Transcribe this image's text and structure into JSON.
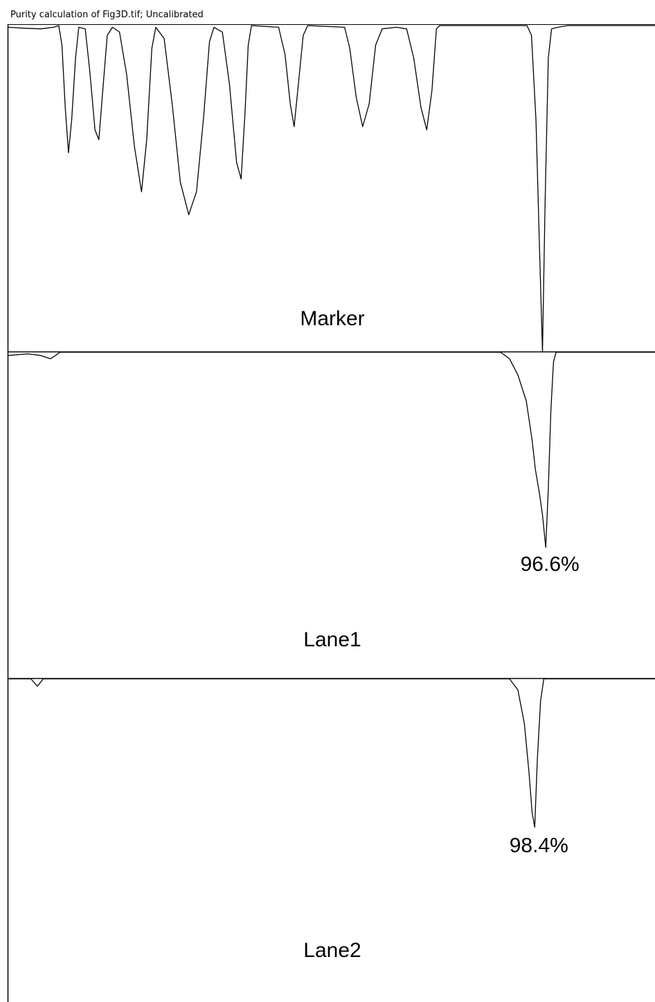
{
  "window": {
    "title": "Purity calculation of Fig3D.tif; Uncalibrated"
  },
  "colors": {
    "trace": "#000000",
    "frame": "#000000",
    "background": "#ffffff"
  },
  "chart_data": {
    "type": "line",
    "title": "",
    "xlabel": "",
    "ylabel": "",
    "grid": false,
    "xlim": [
      0,
      100
    ],
    "ylim": [
      0,
      1
    ],
    "lanes": [
      {
        "label": "Marker",
        "peak_label": "",
        "points": [
          [
            0,
            0.005
          ],
          [
            2.5,
            0.008
          ],
          [
            5.0,
            0.01
          ],
          [
            7.0,
            0.005
          ],
          [
            7.8,
            0.0
          ],
          [
            8.3,
            0.06
          ],
          [
            8.8,
            0.25
          ],
          [
            9.3,
            0.39
          ],
          [
            9.8,
            0.29
          ],
          [
            10.4,
            0.1
          ],
          [
            10.9,
            0.005
          ],
          [
            11.9,
            0.01
          ],
          [
            12.6,
            0.14
          ],
          [
            13.4,
            0.32
          ],
          [
            14.0,
            0.35
          ],
          [
            14.6,
            0.2
          ],
          [
            15.3,
            0.03
          ],
          [
            16.1,
            0.005
          ],
          [
            17.2,
            0.02
          ],
          [
            18.3,
            0.15
          ],
          [
            19.5,
            0.37
          ],
          [
            20.6,
            0.51
          ],
          [
            21.4,
            0.35
          ],
          [
            22.2,
            0.07
          ],
          [
            22.8,
            0.005
          ],
          [
            24.1,
            0.04
          ],
          [
            25.4,
            0.25
          ],
          [
            26.6,
            0.48
          ],
          [
            27.9,
            0.58
          ],
          [
            29.1,
            0.51
          ],
          [
            30.2,
            0.28
          ],
          [
            31.1,
            0.05
          ],
          [
            31.8,
            0.005
          ],
          [
            33.1,
            0.02
          ],
          [
            34.2,
            0.18
          ],
          [
            35.3,
            0.42
          ],
          [
            36.0,
            0.47
          ],
          [
            36.6,
            0.27
          ],
          [
            37.1,
            0.06
          ],
          [
            37.6,
            0.0
          ],
          [
            41.8,
            0.005
          ],
          [
            42.8,
            0.09
          ],
          [
            43.6,
            0.24
          ],
          [
            44.2,
            0.31
          ],
          [
            44.9,
            0.17
          ],
          [
            45.6,
            0.03
          ],
          [
            46.3,
            0.0
          ],
          [
            52.0,
            0.005
          ],
          [
            52.8,
            0.07
          ],
          [
            53.8,
            0.22
          ],
          [
            54.8,
            0.31
          ],
          [
            55.8,
            0.24
          ],
          [
            56.8,
            0.06
          ],
          [
            57.8,
            0.01
          ],
          [
            60.0,
            0.005
          ],
          [
            61.6,
            0.01
          ],
          [
            62.7,
            0.1
          ],
          [
            63.8,
            0.25
          ],
          [
            64.7,
            0.32
          ],
          [
            65.5,
            0.2
          ],
          [
            66.2,
            0.01
          ],
          [
            66.7,
            0.0
          ],
          [
            80.2,
            0.0
          ],
          [
            80.9,
            0.03
          ],
          [
            81.6,
            0.29
          ],
          [
            82.2,
            0.72
          ],
          [
            82.6,
            1.0
          ],
          [
            83.0,
            0.55
          ],
          [
            83.5,
            0.1
          ],
          [
            84.0,
            0.01
          ],
          [
            85.0,
            0.005
          ],
          [
            86.5,
            0.0
          ],
          [
            100,
            0.0
          ]
        ]
      },
      {
        "label": "Lane1",
        "peak_label": "96.6%",
        "points": [
          [
            0,
            0.01
          ],
          [
            3.0,
            0.005
          ],
          [
            5.0,
            0.01
          ],
          [
            6.5,
            0.02
          ],
          [
            7.3,
            0.01
          ],
          [
            8.0,
            0.0
          ],
          [
            76.1,
            0.0
          ],
          [
            77.5,
            0.02
          ],
          [
            78.8,
            0.07
          ],
          [
            80.1,
            0.15
          ],
          [
            81.0,
            0.27
          ],
          [
            81.5,
            0.36
          ],
          [
            82.1,
            0.43
          ],
          [
            82.6,
            0.5
          ],
          [
            83.1,
            0.6
          ],
          [
            83.5,
            0.42
          ],
          [
            83.9,
            0.18
          ],
          [
            84.3,
            0.03
          ],
          [
            84.7,
            0.0
          ],
          [
            100,
            0.0
          ]
        ]
      },
      {
        "label": "Lane2",
        "peak_label": "98.4%",
        "points": [
          [
            0,
            0.0
          ],
          [
            3.5,
            0.0
          ],
          [
            4.5,
            0.02
          ],
          [
            5.4,
            0.0
          ],
          [
            77.5,
            0.0
          ],
          [
            78.8,
            0.03
          ],
          [
            79.8,
            0.12
          ],
          [
            80.5,
            0.25
          ],
          [
            81.0,
            0.36
          ],
          [
            81.4,
            0.4
          ],
          [
            81.8,
            0.22
          ],
          [
            82.3,
            0.06
          ],
          [
            82.8,
            0.0
          ],
          [
            100,
            0.0
          ]
        ]
      }
    ]
  }
}
